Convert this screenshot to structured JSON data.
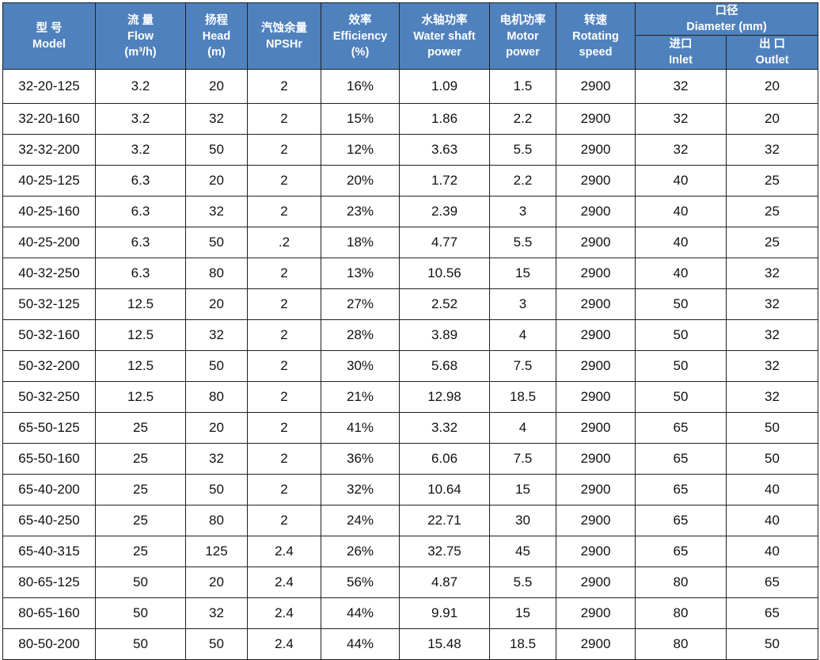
{
  "header": {
    "model": {
      "zh": "型 号",
      "en": "Model"
    },
    "flow": {
      "zh": "流 量",
      "en": "Flow",
      "unit": "(m³/h)"
    },
    "head": {
      "zh": "扬程",
      "en": "Head",
      "unit": "(m)"
    },
    "npsh": {
      "zh": "汽蚀余量",
      "en": "NPSHr"
    },
    "efficiency": {
      "zh": "效率",
      "en": "Efficiency",
      "unit": "(%)"
    },
    "shaft_power": {
      "zh": "水轴功率",
      "en": "Water shaft",
      "en2": "power"
    },
    "motor_power": {
      "zh": "电机功率",
      "en": "Motor",
      "en2": "power"
    },
    "speed": {
      "zh": "转速",
      "en": "Rotating",
      "en2": "speed"
    },
    "diameter": {
      "zh": "口径",
      "en": "Diameter (mm)"
    },
    "inlet": {
      "zh": "进口",
      "en": "Inlet"
    },
    "outlet": {
      "zh": "出 口",
      "en": "Outlet"
    }
  },
  "rows": [
    [
      "32-20-125",
      "3.2",
      "20",
      "2",
      "16%",
      "1.09",
      "1.5",
      "2900",
      "32",
      "20"
    ],
    [
      "32-20-160",
      "3.2",
      "32",
      "2",
      "15%",
      "1.86",
      "2.2",
      "2900",
      "32",
      "20"
    ],
    [
      "32-32-200",
      "3.2",
      "50",
      "2",
      "12%",
      "3.63",
      "5.5",
      "2900",
      "32",
      "32"
    ],
    [
      "40-25-125",
      "6.3",
      "20",
      "2",
      "20%",
      "1.72",
      "2.2",
      "2900",
      "40",
      "25"
    ],
    [
      "40-25-160",
      "6.3",
      "32",
      "2",
      "23%",
      "2.39",
      "3",
      "2900",
      "40",
      "25"
    ],
    [
      "40-25-200",
      "6.3",
      "50",
      ".2",
      "18%",
      "4.77",
      "5.5",
      "2900",
      "40",
      "25"
    ],
    [
      "40-32-250",
      "6.3",
      "80",
      "2",
      "13%",
      "10.56",
      "15",
      "2900",
      "40",
      "32"
    ],
    [
      "50-32-125",
      "12.5",
      "20",
      "2",
      "27%",
      "2.52",
      "3",
      "2900",
      "50",
      "32"
    ],
    [
      "50-32-160",
      "12.5",
      "32",
      "2",
      "28%",
      "3.89",
      "4",
      "2900",
      "50",
      "32"
    ],
    [
      "50-32-200",
      "12.5",
      "50",
      "2",
      "30%",
      "5.68",
      "7.5",
      "2900",
      "50",
      "32"
    ],
    [
      "50-32-250",
      "12.5",
      "80",
      "2",
      "21%",
      "12.98",
      "18.5",
      "2900",
      "50",
      "32"
    ],
    [
      "65-50-125",
      "25",
      "20",
      "2",
      "41%",
      "3.32",
      "4",
      "2900",
      "65",
      "50"
    ],
    [
      "65-50-160",
      "25",
      "32",
      "2",
      "36%",
      "6.06",
      "7.5",
      "2900",
      "65",
      "50"
    ],
    [
      "65-40-200",
      "25",
      "50",
      "2",
      "32%",
      "10.64",
      "15",
      "2900",
      "65",
      "40"
    ],
    [
      "65-40-250",
      "25",
      "80",
      "2",
      "24%",
      "22.71",
      "30",
      "2900",
      "65",
      "40"
    ],
    [
      "65-40-315",
      "25",
      "125",
      "2.4",
      "26%",
      "32.75",
      "45",
      "2900",
      "65",
      "40"
    ],
    [
      "80-65-125",
      "50",
      "20",
      "2.4",
      "56%",
      "4.87",
      "5.5",
      "2900",
      "80",
      "65"
    ],
    [
      "80-65-160",
      "50",
      "32",
      "2.4",
      "44%",
      "9.91",
      "15",
      "2900",
      "80",
      "65"
    ],
    [
      "80-50-200",
      "50",
      "50",
      "2.4",
      "44%",
      "15.48",
      "18.5",
      "2900",
      "80",
      "50"
    ]
  ]
}
